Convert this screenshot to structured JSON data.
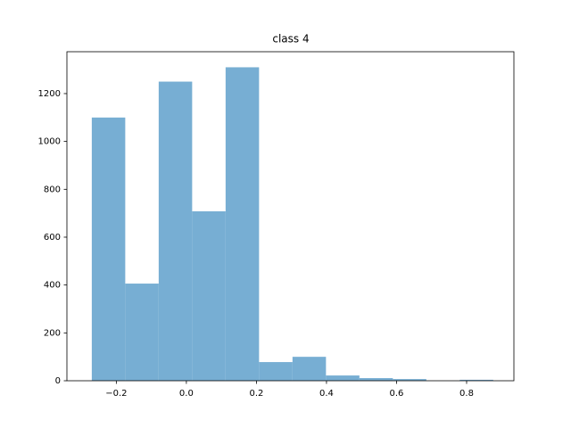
{
  "chart_data": {
    "type": "histogram",
    "title": "class 4",
    "bins": [
      -0.27,
      -0.1745,
      -0.079,
      0.0165,
      0.112,
      0.2075,
      0.303,
      0.3985,
      0.494,
      0.5895,
      0.685,
      0.7805,
      0.876
    ],
    "counts": [
      1100,
      406,
      1250,
      708,
      1310,
      78,
      100,
      22,
      11,
      7,
      0,
      4
    ],
    "color": "#77aed3",
    "xlim": [
      -0.341,
      0.935
    ],
    "xticks": [
      {
        "value": -0.2,
        "label": "−0.2"
      },
      {
        "value": 0,
        "label": "0.0"
      },
      0.2,
      0.4,
      0.6,
      0.8
    ],
    "ylim": [
      0,
      1375
    ],
    "yticks": [
      0,
      200,
      400,
      600,
      800,
      1000,
      1200
    ],
    "grid": false
  }
}
